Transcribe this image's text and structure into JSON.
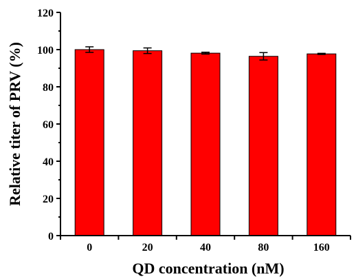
{
  "chart_data": {
    "type": "bar",
    "title": "",
    "xlabel": "QD concentration (nM)",
    "ylabel": "Relative titer of PRV (%)",
    "categories": [
      "0",
      "20",
      "40",
      "80",
      "160"
    ],
    "values": [
      100.0,
      99.4,
      98.1,
      96.4,
      97.7
    ],
    "errors": [
      1.5,
      1.5,
      0.5,
      2.0,
      0.3
    ],
    "ylim": [
      0,
      120
    ],
    "yticks": [
      "0",
      "20",
      "40",
      "60",
      "80",
      "100",
      "120"
    ],
    "grid": false,
    "legend": "none",
    "bar_color": "#ff0000",
    "bar_edge_color": "#000000"
  }
}
